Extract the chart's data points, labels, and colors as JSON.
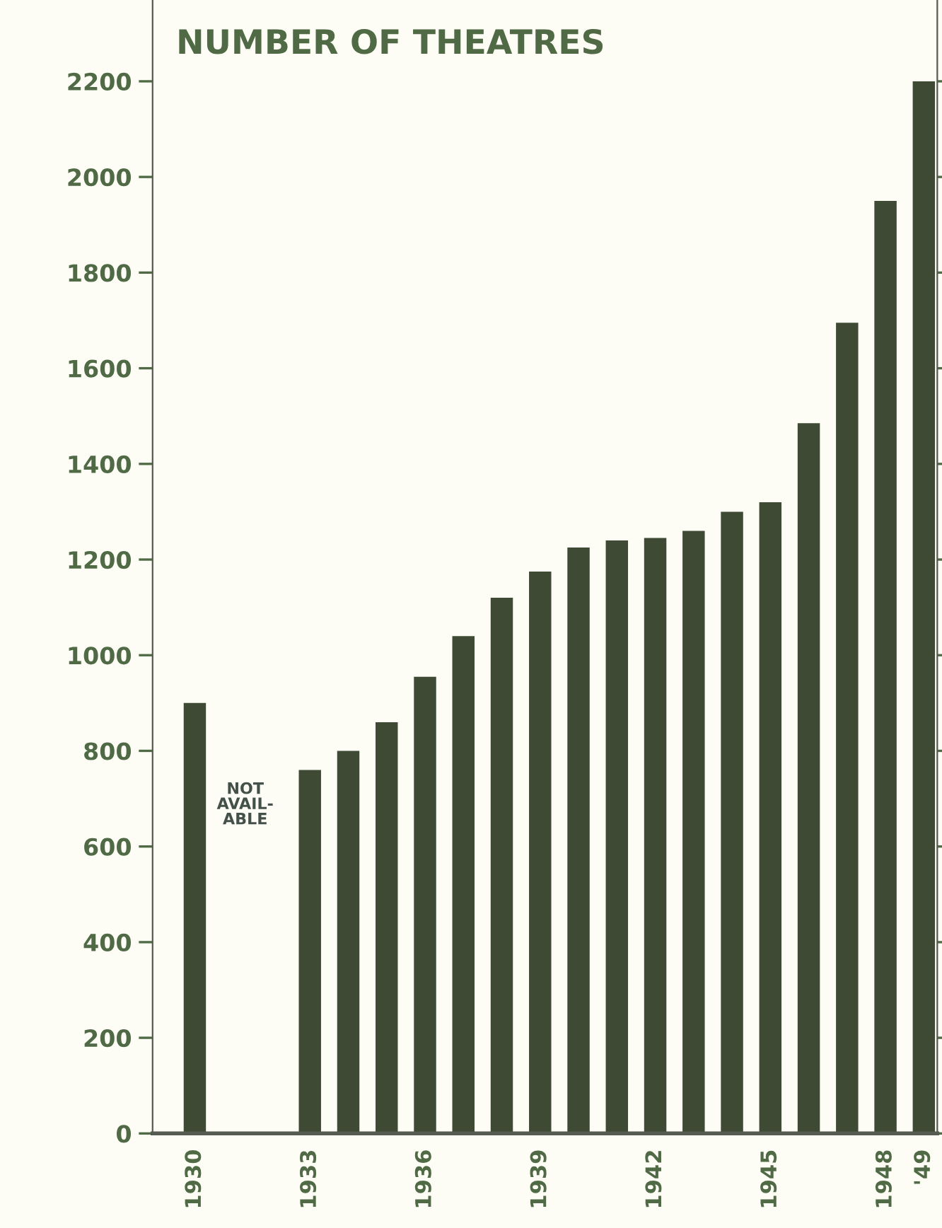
{
  "chart_data": {
    "type": "bar",
    "title": "NUMBER OF THEATRES",
    "categories": [
      "1930",
      null,
      null,
      "1933",
      null,
      null,
      "1936",
      null,
      null,
      "1939",
      null,
      null,
      "1942",
      null,
      null,
      "1945",
      null,
      null,
      "1948",
      "'49"
    ],
    "values": [
      900,
      null,
      null,
      760,
      800,
      860,
      955,
      1040,
      1120,
      1175,
      1225,
      1240,
      1245,
      1260,
      1300,
      1320,
      1485,
      1695,
      1950,
      2200
    ],
    "color": "#3f4a35",
    "ylim": [
      0,
      2370
    ],
    "yticks": [
      0,
      200,
      400,
      600,
      800,
      1000,
      1200,
      1400,
      1600,
      1800,
      2000,
      2200
    ],
    "annotations": [
      "NOT\nAVAIL-\nABLE"
    ],
    "grid": false,
    "legend": false
  }
}
